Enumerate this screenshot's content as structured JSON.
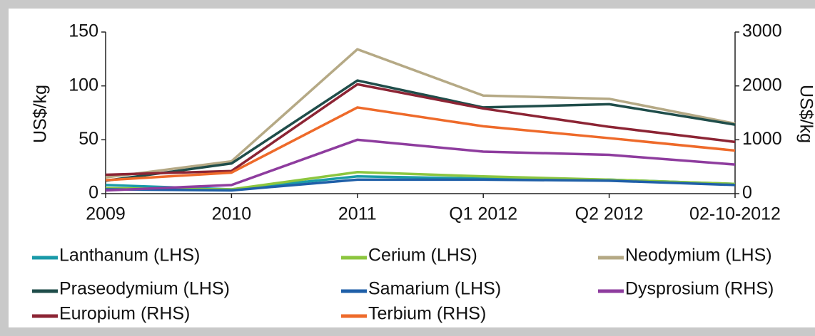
{
  "chart_data": {
    "type": "line",
    "categories": [
      "2009",
      "2010",
      "2011",
      "Q1 2012",
      "Q2 2012",
      "02-10-2012"
    ],
    "ylabel": "US$/kg",
    "y2label": "US$/kg",
    "ylim": [
      0,
      150
    ],
    "yticks": [
      0,
      50,
      100,
      150
    ],
    "y2lim": [
      0,
      3000
    ],
    "y2ticks": [
      0,
      1000,
      2000,
      3000
    ],
    "grid": false,
    "legend": "bottom",
    "series": [
      {
        "name": "Lanthanum (LHS)",
        "color": "#1a9aa8",
        "values": [
          8,
          4,
          16,
          14,
          13,
          9
        ]
      },
      {
        "name": "Cerium (LHS)",
        "color": "#8cc63f",
        "values": [
          5,
          4,
          20,
          16,
          13,
          9
        ]
      },
      {
        "name": "Neodymium (LHS)",
        "color": "#b5a985",
        "values": [
          15,
          30,
          134,
          91,
          88,
          65
        ]
      },
      {
        "name": "Praseodymium (LHS)",
        "color": "#1f4d4a",
        "values": [
          12,
          28,
          105,
          80,
          83,
          64
        ]
      },
      {
        "name": "Samarium (LHS)",
        "color": "#1f5fa8",
        "values": [
          4,
          3,
          13,
          13,
          12,
          8
        ]
      },
      {
        "name": "Dysprosium (RHS)",
        "color": "#8e3c9e",
        "values": [
          60,
          160,
          1000,
          780,
          720,
          540
        ],
        "axis": "y2"
      },
      {
        "name": "Europium (RHS)",
        "color": "#8c2434",
        "values": [
          350,
          420,
          2030,
          1580,
          1240,
          960
        ],
        "axis": "y2"
      },
      {
        "name": "Terbium (RHS)",
        "color": "#ee6a2a",
        "values": [
          250,
          390,
          1600,
          1250,
          1030,
          800
        ],
        "axis": "y2"
      }
    ]
  }
}
